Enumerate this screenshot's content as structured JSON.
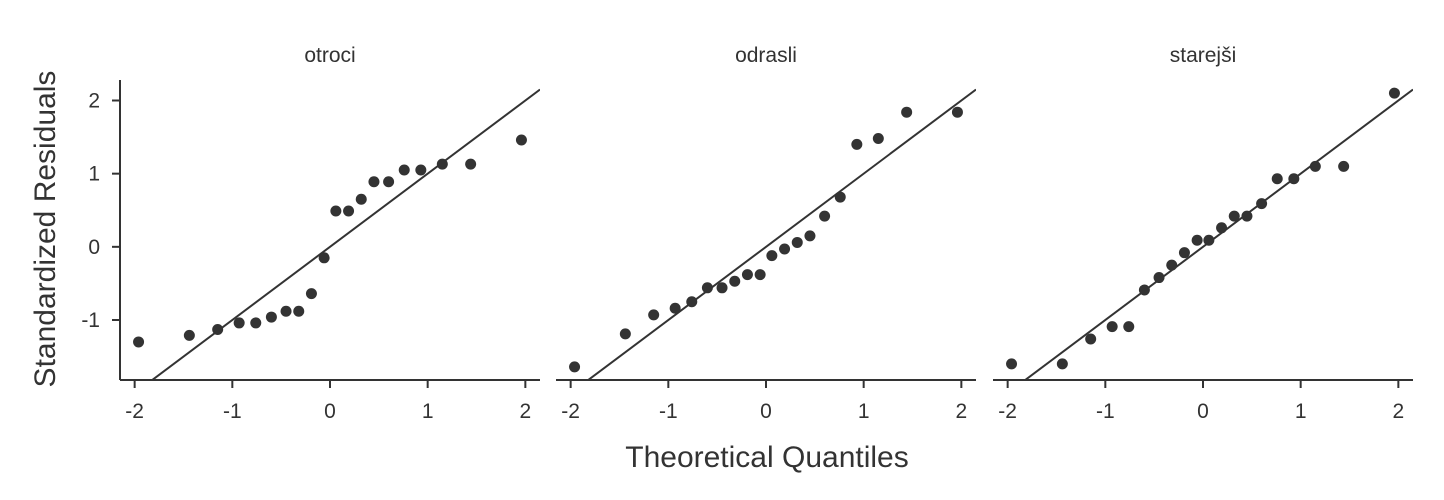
{
  "chart_data": {
    "type": "scatter",
    "xlabel": "Theoretical Quantiles",
    "ylabel": "Standardized Residuals",
    "xlim": [
      -2.15,
      2.15
    ],
    "ylim": [
      -1.82,
      2.28
    ],
    "xticks": [
      -2,
      -1,
      0,
      1,
      2
    ],
    "xtick_labels": [
      "-2",
      "-1",
      "0",
      "1",
      "2"
    ],
    "yticks": [
      -1,
      0,
      1,
      2
    ],
    "ytick_labels": [
      "-1",
      "0",
      "1",
      "2"
    ],
    "grid": false,
    "reference_line": {
      "slope": 1,
      "intercept": 0
    },
    "panels": [
      {
        "title": "otroci",
        "points": [
          {
            "x": -1.96,
            "y": -1.3
          },
          {
            "x": -1.44,
            "y": -1.21
          },
          {
            "x": -1.15,
            "y": -1.13
          },
          {
            "x": -0.93,
            "y": -1.04
          },
          {
            "x": -0.76,
            "y": -1.04
          },
          {
            "x": -0.6,
            "y": -0.96
          },
          {
            "x": -0.45,
            "y": -0.88
          },
          {
            "x": -0.32,
            "y": -0.88
          },
          {
            "x": -0.19,
            "y": -0.64
          },
          {
            "x": -0.06,
            "y": -0.15
          },
          {
            "x": 0.06,
            "y": 0.49
          },
          {
            "x": 0.19,
            "y": 0.49
          },
          {
            "x": 0.32,
            "y": 0.65
          },
          {
            "x": 0.45,
            "y": 0.89
          },
          {
            "x": 0.6,
            "y": 0.89
          },
          {
            "x": 0.76,
            "y": 1.05
          },
          {
            "x": 0.93,
            "y": 1.05
          },
          {
            "x": 1.15,
            "y": 1.13
          },
          {
            "x": 1.44,
            "y": 1.13
          },
          {
            "x": 1.96,
            "y": 1.46
          }
        ]
      },
      {
        "title": "odrasli",
        "points": [
          {
            "x": -1.96,
            "y": -1.64
          },
          {
            "x": -1.44,
            "y": -1.19
          },
          {
            "x": -1.15,
            "y": -0.93
          },
          {
            "x": -0.93,
            "y": -0.84
          },
          {
            "x": -0.76,
            "y": -0.75
          },
          {
            "x": -0.6,
            "y": -0.56
          },
          {
            "x": -0.45,
            "y": -0.56
          },
          {
            "x": -0.32,
            "y": -0.47
          },
          {
            "x": -0.19,
            "y": -0.38
          },
          {
            "x": -0.06,
            "y": -0.38
          },
          {
            "x": 0.06,
            "y": -0.12
          },
          {
            "x": 0.19,
            "y": -0.03
          },
          {
            "x": 0.32,
            "y": 0.06
          },
          {
            "x": 0.45,
            "y": 0.15
          },
          {
            "x": 0.6,
            "y": 0.42
          },
          {
            "x": 0.76,
            "y": 0.68
          },
          {
            "x": 0.93,
            "y": 1.4
          },
          {
            "x": 1.15,
            "y": 1.48
          },
          {
            "x": 1.44,
            "y": 1.84
          },
          {
            "x": 1.96,
            "y": 1.84
          }
        ]
      },
      {
        "title": "starejši",
        "points": [
          {
            "x": -1.96,
            "y": -1.6
          },
          {
            "x": -1.44,
            "y": -1.6
          },
          {
            "x": -1.15,
            "y": -1.26
          },
          {
            "x": -0.93,
            "y": -1.09
          },
          {
            "x": -0.76,
            "y": -1.09
          },
          {
            "x": -0.6,
            "y": -0.59
          },
          {
            "x": -0.45,
            "y": -0.42
          },
          {
            "x": -0.32,
            "y": -0.25
          },
          {
            "x": -0.19,
            "y": -0.08
          },
          {
            "x": -0.06,
            "y": 0.09
          },
          {
            "x": 0.06,
            "y": 0.09
          },
          {
            "x": 0.19,
            "y": 0.26
          },
          {
            "x": 0.32,
            "y": 0.42
          },
          {
            "x": 0.45,
            "y": 0.42
          },
          {
            "x": 0.6,
            "y": 0.59
          },
          {
            "x": 0.76,
            "y": 0.93
          },
          {
            "x": 0.93,
            "y": 0.93
          },
          {
            "x": 1.15,
            "y": 1.1
          },
          {
            "x": 1.44,
            "y": 1.1
          },
          {
            "x": 1.96,
            "y": 2.1
          }
        ]
      }
    ]
  }
}
